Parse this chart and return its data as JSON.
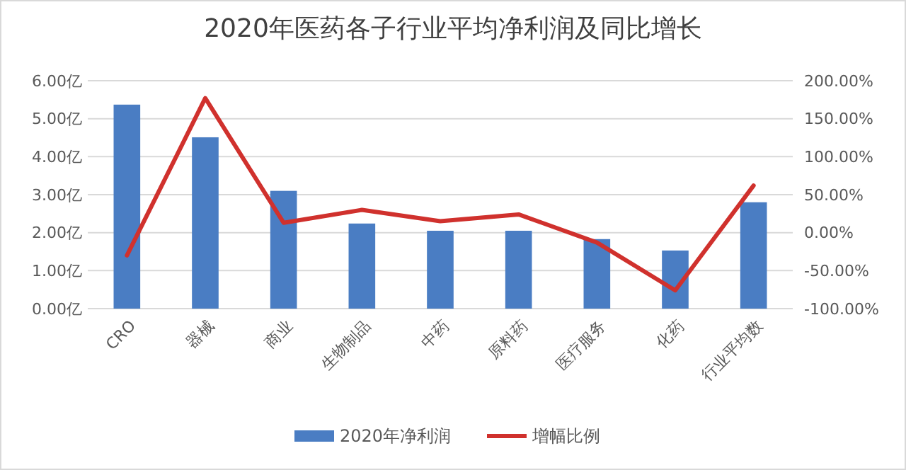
{
  "chart_data": {
    "type": "bar",
    "title": "2020年医药各子行业平均净利润及同比增长",
    "categories": [
      "CRO",
      "器械",
      "商业",
      "生物制品",
      "中药",
      "原料药",
      "医疗服务",
      "化药",
      "行业平均数"
    ],
    "series": [
      {
        "name": "2020年净利润",
        "color": "#4a7dc3",
        "values": [
          5.37,
          4.51,
          3.1,
          2.24,
          2.05,
          2.05,
          1.83,
          1.53,
          2.8
        ]
      },
      {
        "name": "增幅比例",
        "type": "line",
        "axis": "y2",
        "color": "#d0312d",
        "values": [
          -30,
          177,
          13,
          30,
          15,
          24,
          -13,
          -76,
          62
        ]
      }
    ],
    "ylim": [
      0,
      6
    ],
    "yticks": [
      {
        "value": 0,
        "label": "0.00亿"
      },
      {
        "value": 1,
        "label": "1.00亿"
      },
      {
        "value": 2,
        "label": "2.00亿"
      },
      {
        "value": 3,
        "label": "3.00亿"
      },
      {
        "value": 4,
        "label": "4.00亿"
      },
      {
        "value": 5,
        "label": "5.00亿"
      },
      {
        "value": 6,
        "label": "6.00亿"
      }
    ],
    "y2lim": [
      -100,
      200
    ],
    "y2ticks": [
      {
        "value": -100,
        "label": "-100.00%"
      },
      {
        "value": -50,
        "label": "-50.00%"
      },
      {
        "value": 0,
        "label": "0.00%"
      },
      {
        "value": 50,
        "label": "50.00%"
      },
      {
        "value": 100,
        "label": "100.00%"
      },
      {
        "value": 150,
        "label": "150.00%"
      },
      {
        "value": 200,
        "label": "200.00%"
      }
    ],
    "grid": "y",
    "legend": "bottom",
    "marker": "none",
    "line_style": "solid"
  }
}
